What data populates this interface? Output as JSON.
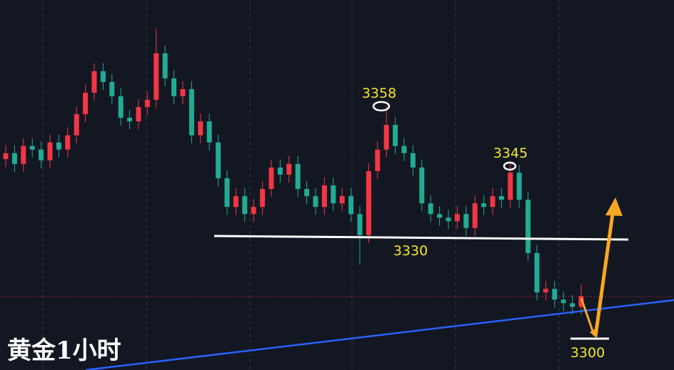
{
  "chart_data": {
    "type": "candlestick",
    "title": "黄金1小时",
    "up_color": "#f23645",
    "down_color": "#22ab94",
    "ylim": [
      3292,
      3385
    ],
    "open": [
      3345.0,
      3346.5,
      3343.8,
      3348.3,
      3347.4,
      3344.7,
      3349.2,
      3347.4,
      3351.0,
      3356.3,
      3361.7,
      3367.1,
      3364.4,
      3360.8,
      3355.4,
      3354.5,
      3358.1,
      3359.9,
      3371.6,
      3365.3,
      3360.8,
      3362.6,
      3351.0,
      3354.5,
      3349.2,
      3340.2,
      3333.0,
      3335.7,
      3331.2,
      3333.0,
      3337.5,
      3342.9,
      3341.1,
      3343.8,
      3337.5,
      3335.7,
      3333.0,
      3338.4,
      3333.9,
      3335.7,
      3331.2,
      3325.9,
      3342.0,
      3347.4,
      3353.6,
      3348.3,
      3346.5,
      3342.9,
      3333.9,
      3331.2,
      3330.3,
      3329.4,
      3331.2,
      3327.7,
      3333.9,
      3333.0,
      3335.7,
      3334.8,
      3341.6,
      3334.8,
      3321.4,
      3311.5,
      3312.4,
      3309.7,
      3308.8,
      3307.9
    ],
    "high": [
      3348.5,
      3348.5,
      3350.3,
      3350.3,
      3349.4,
      3351.2,
      3351.2,
      3353.0,
      3358.3,
      3363.7,
      3369.1,
      3369.1,
      3366.4,
      3362.8,
      3357.4,
      3360.1,
      3361.9,
      3377.8,
      3373.6,
      3367.3,
      3364.6,
      3364.6,
      3356.5,
      3356.5,
      3351.2,
      3342.2,
      3337.7,
      3337.7,
      3335.0,
      3339.5,
      3344.9,
      3344.9,
      3345.8,
      3345.8,
      3339.5,
      3337.7,
      3340.4,
      3340.4,
      3337.7,
      3337.7,
      3333.2,
      3344.0,
      3349.4,
      3358.4,
      3355.6,
      3350.3,
      3348.5,
      3344.9,
      3335.9,
      3333.2,
      3332.3,
      3333.2,
      3333.2,
      3335.9,
      3335.9,
      3337.7,
      3337.7,
      3344.5,
      3343.6,
      3336.8,
      3323.4,
      3314.4,
      3314.4,
      3311.7,
      3310.8,
      3313.5
    ],
    "low": [
      3343.0,
      3341.8,
      3341.8,
      3345.4,
      3342.7,
      3342.7,
      3345.4,
      3345.4,
      3349.0,
      3354.3,
      3359.7,
      3362.4,
      3358.8,
      3353.4,
      3352.5,
      3352.5,
      3356.1,
      3357.9,
      3363.3,
      3358.8,
      3358.8,
      3349.0,
      3349.0,
      3347.2,
      3338.2,
      3331.0,
      3331.0,
      3329.2,
      3329.2,
      3331.0,
      3335.5,
      3339.1,
      3339.1,
      3335.5,
      3333.7,
      3331.0,
      3331.0,
      3331.9,
      3331.9,
      3329.2,
      3318.5,
      3323.9,
      3340.0,
      3345.4,
      3346.3,
      3344.5,
      3340.9,
      3331.9,
      3329.2,
      3328.3,
      3327.4,
      3327.4,
      3325.7,
      3325.7,
      3331.0,
      3331.0,
      3332.8,
      3332.8,
      3332.8,
      3319.4,
      3309.5,
      3309.5,
      3307.7,
      3306.8,
      3305.9,
      3305.9
    ],
    "close": [
      3346.5,
      3343.8,
      3348.3,
      3347.4,
      3344.7,
      3349.2,
      3347.4,
      3351.0,
      3356.3,
      3361.7,
      3367.1,
      3364.4,
      3360.8,
      3355.4,
      3354.5,
      3358.1,
      3359.9,
      3371.6,
      3365.3,
      3360.8,
      3362.6,
      3351.0,
      3354.5,
      3349.2,
      3340.2,
      3333.0,
      3335.7,
      3331.2,
      3333.0,
      3337.5,
      3342.9,
      3341.1,
      3343.8,
      3337.5,
      3335.7,
      3333.0,
      3338.4,
      3333.9,
      3335.7,
      3331.2,
      3325.9,
      3342.0,
      3347.4,
      3353.6,
      3348.3,
      3346.5,
      3342.9,
      3333.9,
      3331.2,
      3330.3,
      3329.4,
      3331.2,
      3327.7,
      3333.9,
      3333.0,
      3335.7,
      3334.8,
      3341.6,
      3334.8,
      3321.4,
      3311.5,
      3312.4,
      3309.7,
      3308.8,
      3307.9,
      3310.6
    ],
    "annotations": [
      3358,
      3345,
      3330,
      3300
    ]
  }
}
